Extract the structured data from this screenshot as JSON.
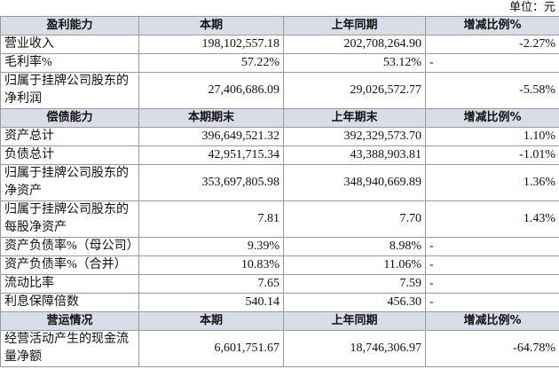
{
  "unit": "单位：元",
  "table": {
    "sections": [
      {
        "header": [
          "盈利能力",
          "本期",
          "上年同期",
          "增减比例%"
        ],
        "rows": [
          [
            "营业收入",
            "198,102,557.18",
            "202,708,264.90",
            "-2.27%"
          ],
          [
            "毛利率%",
            "57.22%",
            "53.12%",
            "-"
          ],
          [
            "归属于挂牌公司股东的净利润",
            "27,406,686.09",
            "29,026,572.77",
            "-5.58%"
          ]
        ]
      },
      {
        "header": [
          "偿债能力",
          "本期期末",
          "上年期末",
          "增减比例%"
        ],
        "rows": [
          [
            "资产总计",
            "396,649,521.32",
            "392,329,573.70",
            "1.10%"
          ],
          [
            "负债总计",
            "42,951,715.34",
            "43,388,903.81",
            "-1.01%"
          ],
          [
            "归属于挂牌公司股东的净资产",
            "353,697,805.98",
            "348,940,669.89",
            "1.36%"
          ],
          [
            "归属于挂牌公司股东的每股净资产",
            "7.81",
            "7.70",
            "1.43%"
          ],
          [
            "资产负债率%（母公司）",
            "9.39%",
            "8.98%",
            "-"
          ],
          [
            "资产负债率%（合并）",
            "10.83%",
            "11.06%",
            "-"
          ],
          [
            "流动比率",
            "7.65",
            "7.59",
            "-"
          ],
          [
            "利息保障倍数",
            "540.14",
            "456.30",
            "-"
          ]
        ]
      },
      {
        "header": [
          "营运情况",
          "本期",
          "上年同期",
          "增减比例%"
        ],
        "rows": [
          [
            "经营活动产生的现金流量净额",
            "6,601,751.67",
            "18,746,306.97",
            "-64.78%"
          ]
        ]
      }
    ]
  }
}
